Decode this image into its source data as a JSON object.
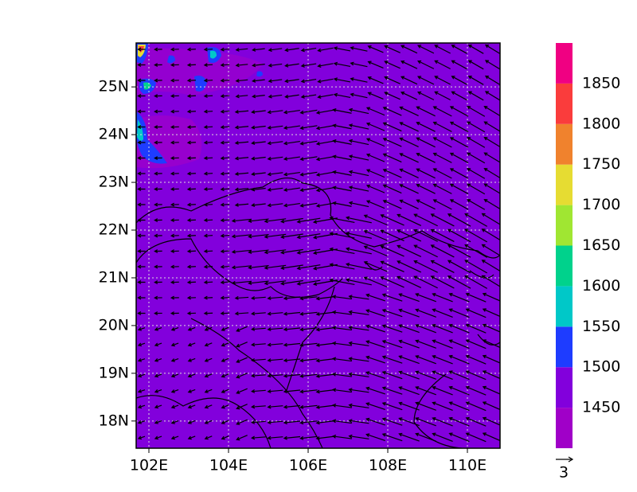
{
  "map": {
    "xlim": [
      101.68,
      110.82
    ],
    "ylim": [
      17.43,
      25.92
    ],
    "xticks": [
      {
        "value": 102,
        "label": "102E"
      },
      {
        "value": 104,
        "label": "104E"
      },
      {
        "value": 106,
        "label": "106E"
      },
      {
        "value": 108,
        "label": "108E"
      },
      {
        "value": 110,
        "label": "110E"
      }
    ],
    "yticks": [
      {
        "value": 18,
        "label": "18N"
      },
      {
        "value": 19,
        "label": "19N"
      },
      {
        "value": 20,
        "label": "20N"
      },
      {
        "value": 21,
        "label": "21N"
      },
      {
        "value": 22,
        "label": "22N"
      },
      {
        "value": 23,
        "label": "23N"
      },
      {
        "value": 24,
        "label": "24N"
      },
      {
        "value": 25,
        "label": "25N"
      }
    ],
    "grid": true,
    "fill_color": "#8200dc"
  },
  "colorbar": {
    "levels": [
      1450,
      1500,
      1550,
      1600,
      1650,
      1700,
      1750,
      1800,
      1850
    ],
    "colors": [
      "#a000c8",
      "#8200dc",
      "#1e3cff",
      "#00c8c8",
      "#00d28c",
      "#a0e632",
      "#e6dc32",
      "#f0822d",
      "#fa3c3c",
      "#f00082"
    ]
  },
  "reference_vector": {
    "label": "3"
  }
}
